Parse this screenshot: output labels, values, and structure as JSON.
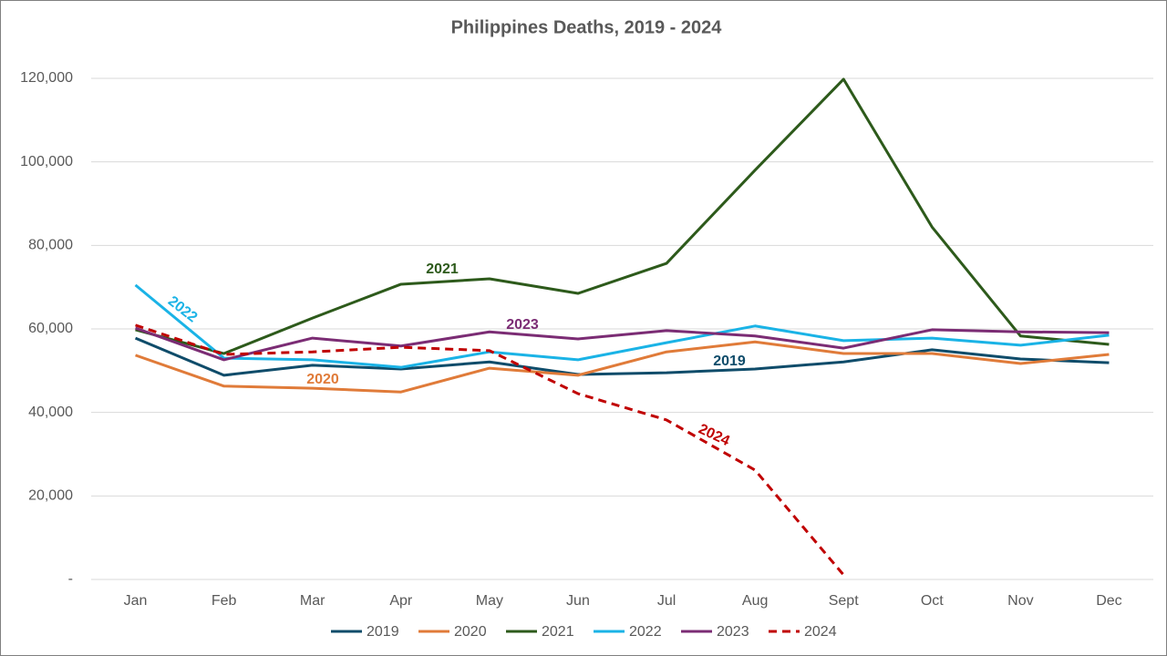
{
  "chart_data": {
    "type": "line",
    "title": "Philippines Deaths, 2019 - 2024",
    "categories": [
      "Jan",
      "Feb",
      "Mar",
      "Apr",
      "May",
      "Jun",
      "Jul",
      "Aug",
      "Sept",
      "Oct",
      "Nov",
      "Dec"
    ],
    "series": [
      {
        "name": "2019",
        "color": "#0f4c6a",
        "values": [
          57800,
          48900,
          51300,
          50400,
          52100,
          49100,
          49500,
          50400,
          52100,
          55000,
          52800,
          51900
        ]
      },
      {
        "name": "2020",
        "color": "#e07b39",
        "values": [
          53700,
          46300,
          45800,
          44900,
          50600,
          48900,
          54500,
          56900,
          54100,
          54100,
          51700,
          53900
        ]
      },
      {
        "name": "2021",
        "color": "#2d5a1b",
        "values": [
          59800,
          54100,
          62600,
          70700,
          72000,
          68500,
          75700,
          98000,
          119800,
          84400,
          58300,
          56300
        ]
      },
      {
        "name": "2022",
        "color": "#1ab3e6",
        "values": [
          70500,
          53000,
          52600,
          50800,
          54500,
          52600,
          56700,
          60700,
          57200,
          57800,
          56100,
          58500
        ]
      },
      {
        "name": "2023",
        "color": "#7b2c74",
        "values": [
          60200,
          52600,
          57800,
          55900,
          59300,
          57600,
          59600,
          58300,
          55400,
          59800,
          59300,
          59100
        ]
      },
      {
        "name": "2024",
        "color": "#c00000",
        "dashed": true,
        "values": [
          60900,
          53900,
          54500,
          55600,
          54800,
          44500,
          38200,
          26200,
          1100,
          null,
          null,
          null
        ]
      }
    ],
    "ylim": [
      0,
      120000
    ],
    "yticks": [
      {
        "value": 0,
        "label": "-"
      },
      {
        "value": 20000,
        "label": "20,000"
      },
      {
        "value": 40000,
        "label": "40,000"
      },
      {
        "value": 60000,
        "label": "60,000"
      },
      {
        "value": 80000,
        "label": "80,000"
      },
      {
        "value": 100000,
        "label": "100,000"
      },
      {
        "value": 120000,
        "label": "120,000"
      }
    ],
    "grid": true,
    "legend": "bottom"
  }
}
